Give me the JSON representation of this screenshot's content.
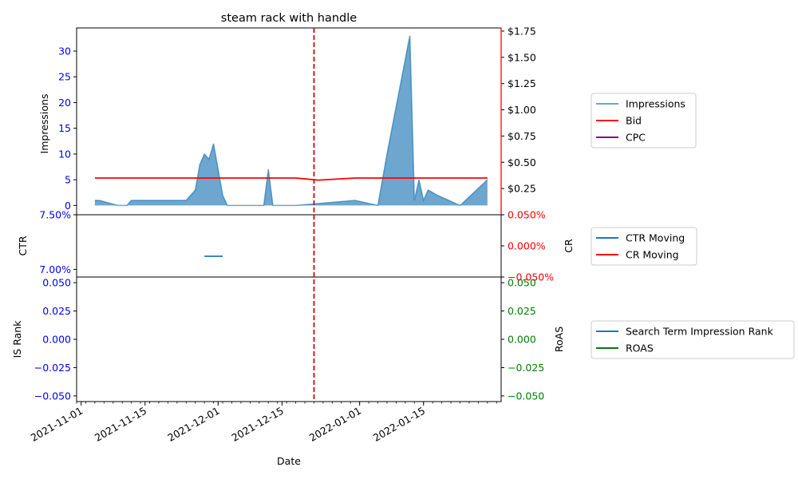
{
  "chart_data": [
    {
      "panel": "top",
      "type": "area+line",
      "title": "steam rack with handle",
      "ylabel": "Impressions",
      "y_left_ticks": [
        0,
        5,
        10,
        15,
        20,
        25,
        30
      ],
      "ylim_left": [
        -1.8,
        34.5
      ],
      "y_right_tick_labels": [
        "$0.25",
        "$0.50",
        "$0.75",
        "$1.00",
        "$1.25",
        "$1.50",
        "$1.75"
      ],
      "y_right_tick_values": [
        0.25,
        0.5,
        0.75,
        1.0,
        1.25,
        1.5,
        1.75
      ],
      "ylim_right": [
        0,
        1.78
      ],
      "series": [
        {
          "name": "Impressions",
          "axis": "left",
          "style": "area",
          "color": "#1f77b4",
          "points": [
            [
              "2021-11-04",
              1
            ],
            [
              "2021-11-05",
              1
            ],
            [
              "2021-11-09",
              0
            ],
            [
              "2021-11-11",
              0
            ],
            [
              "2021-11-12",
              1
            ],
            [
              "2021-11-24",
              1
            ],
            [
              "2021-11-26",
              3
            ],
            [
              "2021-11-27",
              8
            ],
            [
              "2021-11-28",
              10
            ],
            [
              "2021-11-29",
              9
            ],
            [
              "2021-11-30",
              12
            ],
            [
              "2021-12-01",
              7
            ],
            [
              "2021-12-02",
              2
            ],
            [
              "2021-12-03",
              0
            ],
            [
              "2021-12-11",
              0
            ],
            [
              "2021-12-12",
              7
            ],
            [
              "2021-12-13",
              0
            ],
            [
              "2021-12-18",
              0
            ],
            [
              "2021-12-31",
              1
            ],
            [
              "2022-01-05",
              0
            ],
            [
              "2022-01-07",
              10
            ],
            [
              "2022-01-12",
              33
            ],
            [
              "2022-01-13",
              1
            ],
            [
              "2022-01-14",
              5
            ],
            [
              "2022-01-15",
              1
            ],
            [
              "2022-01-16",
              3
            ],
            [
              "2022-01-18",
              2
            ],
            [
              "2022-01-23",
              0
            ],
            [
              "2022-01-29",
              5
            ]
          ]
        },
        {
          "name": "Bid",
          "axis": "right",
          "style": "line",
          "color": "#ff0000",
          "points": [
            [
              "2021-11-04",
              0.35
            ],
            [
              "2021-12-18",
              0.35
            ],
            [
              "2021-12-23",
              0.33
            ],
            [
              "2021-12-31",
              0.35
            ],
            [
              "2022-01-29",
              0.35
            ]
          ]
        },
        {
          "name": "CPC",
          "axis": "right",
          "style": "line",
          "color": "#800080",
          "points": []
        }
      ]
    },
    {
      "panel": "middle",
      "type": "line",
      "ylabel": "CTR",
      "y2label": "CR",
      "y_left_tick_labels": [
        "7.00%",
        "7.50%"
      ],
      "y_left_tick_values": [
        0.07,
        0.075
      ],
      "ylim_left": [
        0.0693,
        0.075
      ],
      "y_right_tick_labels": [
        "−0.050%",
        "0.000%",
        "0.050%"
      ],
      "y_right_tick_values": [
        -0.0005,
        0,
        0.0005
      ],
      "ylim_right": [
        -0.0005,
        0.0005
      ],
      "series": [
        {
          "name": "CTR Moving",
          "axis": "left",
          "color": "#1f77b4",
          "points": [
            [
              "2021-11-28",
              0.0712
            ],
            [
              "2021-12-02",
              0.0712
            ]
          ]
        },
        {
          "name": "CR Moving",
          "axis": "right",
          "color": "#ff0000",
          "points": []
        }
      ]
    },
    {
      "panel": "bottom",
      "type": "line",
      "ylabel": "IS Rank",
      "y2label": "RoAS",
      "y_left_tick_labels": [
        "−0.050",
        "−0.025",
        "0.000",
        "0.025",
        "0.050"
      ],
      "y_left_tick_values": [
        -0.05,
        -0.025,
        0,
        0.025,
        0.05
      ],
      "ylim_left": [
        -0.055,
        0.055
      ],
      "y_right_tick_labels": [
        "−0.050",
        "−0.025",
        "0.000",
        "0.025",
        "0.050"
      ],
      "y_right_tick_values": [
        -0.05,
        -0.025,
        0,
        0.025,
        0.05
      ],
      "ylim_right": [
        -0.055,
        0.055
      ],
      "series": [
        {
          "name": "Search Term Impression Rank",
          "axis": "left",
          "color": "#1f77b4",
          "points": []
        },
        {
          "name": "ROAS",
          "axis": "right",
          "color": "#008000",
          "points": []
        }
      ]
    }
  ],
  "x_axis": {
    "label": "Date",
    "xlim": [
      "2021-10-31",
      "2022-02-01"
    ],
    "major_ticks": [
      "2021-11-01",
      "2021-11-15",
      "2021-12-01",
      "2021-12-15",
      "2022-01-01",
      "2022-01-15"
    ],
    "major_tick_labels": [
      "2021-11-01",
      "2021-11-15",
      "2021-12-01",
      "2021-12-15",
      "2022-01-01",
      "2022-01-15"
    ]
  },
  "marker": {
    "date": "2021-12-22",
    "color": "#dd0000",
    "style": "dashed"
  },
  "colors": {
    "left_axis": "#0000ff",
    "top_right_axis": "#ff0000",
    "middle_right_axis": "#ff0000",
    "bottom_right_axis": "#008000"
  }
}
